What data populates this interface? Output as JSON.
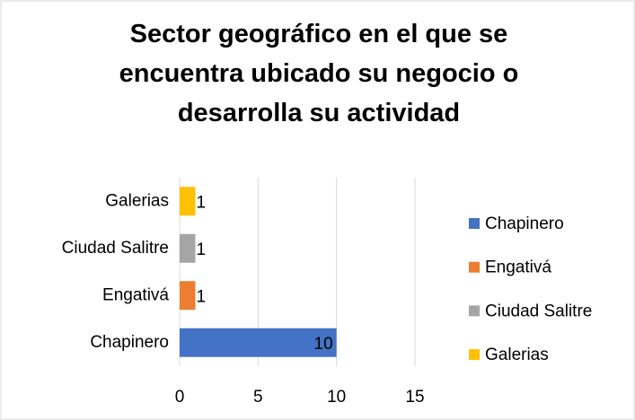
{
  "chart_data": {
    "type": "hbar",
    "title": "Sector geográfico en el que se encuentra ubicado su negocio o desarrolla su actividad",
    "categories": [
      "Chapinero",
      "Engativá",
      "Ciudad Salitre",
      "Galerias"
    ],
    "values": [
      10,
      1,
      1,
      1
    ],
    "colors": [
      "#4472c4",
      "#ed7d31",
      "#a5a5a5",
      "#ffc000"
    ],
    "xlim": [
      0,
      15
    ],
    "xticks": [
      0,
      5,
      10,
      15
    ],
    "grid": true,
    "legend": "right"
  }
}
